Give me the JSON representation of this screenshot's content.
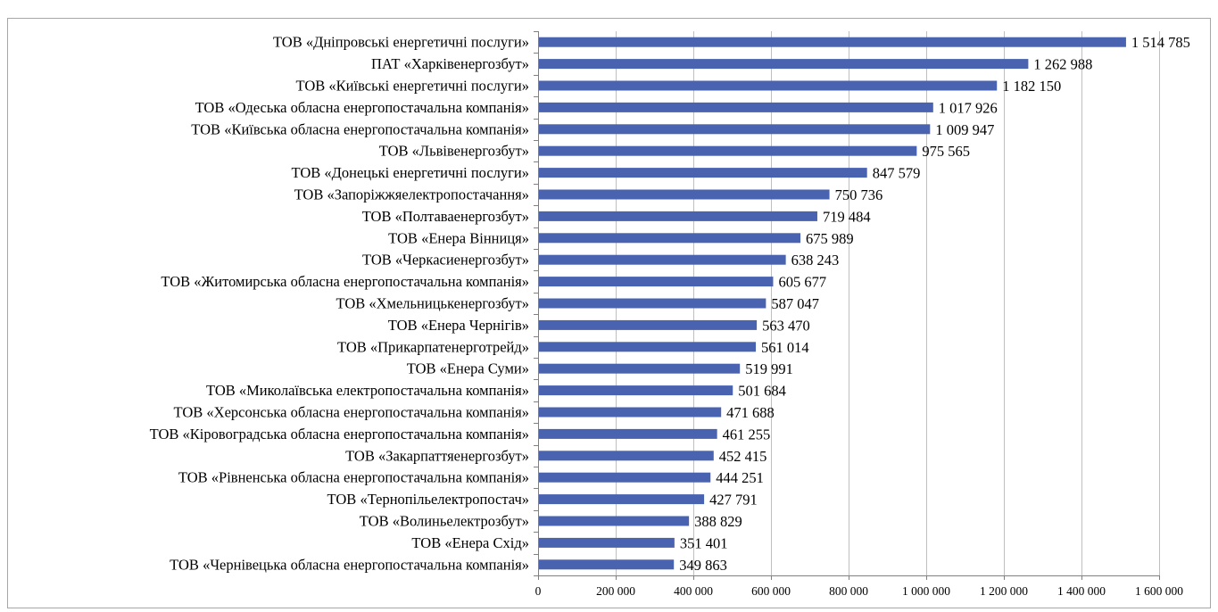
{
  "chart_data": {
    "type": "bar",
    "orientation": "horizontal",
    "categories": [
      "ТОВ «Дніпровські енергетичні послуги»",
      "ПАТ «Харківенергозбут»",
      "ТОВ «Київські енергетичні послуги»",
      "ТОВ «Одеська обласна енергопостачальна компанія»",
      "ТОВ «Київська обласна енергопостачальна компанія»",
      "ТОВ «Львівенергозбут»",
      "ТОВ «Донецькі енергетичні послуги»",
      "ТОВ «Запоріжжяелектропостачання»",
      "ТОВ «Полтаваенергозбут»",
      "ТОВ «Енера Вінниця»",
      "ТОВ «Черкасиенергозбут»",
      "ТОВ «Житомирська обласна енергопостачальна компанія»",
      "ТОВ «Хмельницькенергозбут»",
      "ТОВ «Енера Чернігів»",
      "ТОВ «Прикарпатенерготрейд»",
      "ТОВ «Енера Суми»",
      "ТОВ «Миколаївська електропостачальна компанія»",
      "ТОВ «Херсонська обласна енергопостачальна компанія»",
      "ТОВ «Кіровоградська обласна енергопостачальна компанія»",
      "ТОВ «Закарпаттяенергозбут»",
      "ТОВ «Рівненська обласна енергопостачальна компанія»",
      "ТОВ «Тернопільелектропостач»",
      "ТОВ «Волиньелектрозбут»",
      "ТОВ «Енера Схід»",
      "ТОВ «Чернівецька обласна енергопостачальна компанія»"
    ],
    "values": [
      1514785,
      1262988,
      1182150,
      1017926,
      1009947,
      975565,
      847579,
      750736,
      719484,
      675989,
      638243,
      605677,
      587047,
      563470,
      561014,
      519991,
      501684,
      471688,
      461255,
      452415,
      444251,
      427791,
      388829,
      351401,
      349863
    ],
    "value_labels": [
      "1 514 785",
      "1 262 988",
      "1 182 150",
      "1 017 926",
      "1 009 947",
      "975 565",
      "847 579",
      "750 736",
      "719 484",
      "675 989",
      "638 243",
      "605 677",
      "587 047",
      "563 470",
      "561 014",
      "519 991",
      "501 684",
      "471 688",
      "461 255",
      "452 415",
      "444 251",
      "427 791",
      "388 829",
      "351 401",
      "349 863"
    ],
    "x_ticks": [
      0,
      200000,
      400000,
      600000,
      800000,
      1000000,
      1200000,
      1400000,
      1600000
    ],
    "x_tick_labels": [
      "0",
      "200 000",
      "400 000",
      "600 000",
      "800 000",
      "1 000 000",
      "1 200 000",
      "1 400 000",
      "1 600 000"
    ],
    "xlim": [
      0,
      1600000
    ],
    "title": "",
    "xlabel": "",
    "ylabel": "",
    "grid": "vertical",
    "legend": "none",
    "bar_color": "#4a63b0"
  }
}
